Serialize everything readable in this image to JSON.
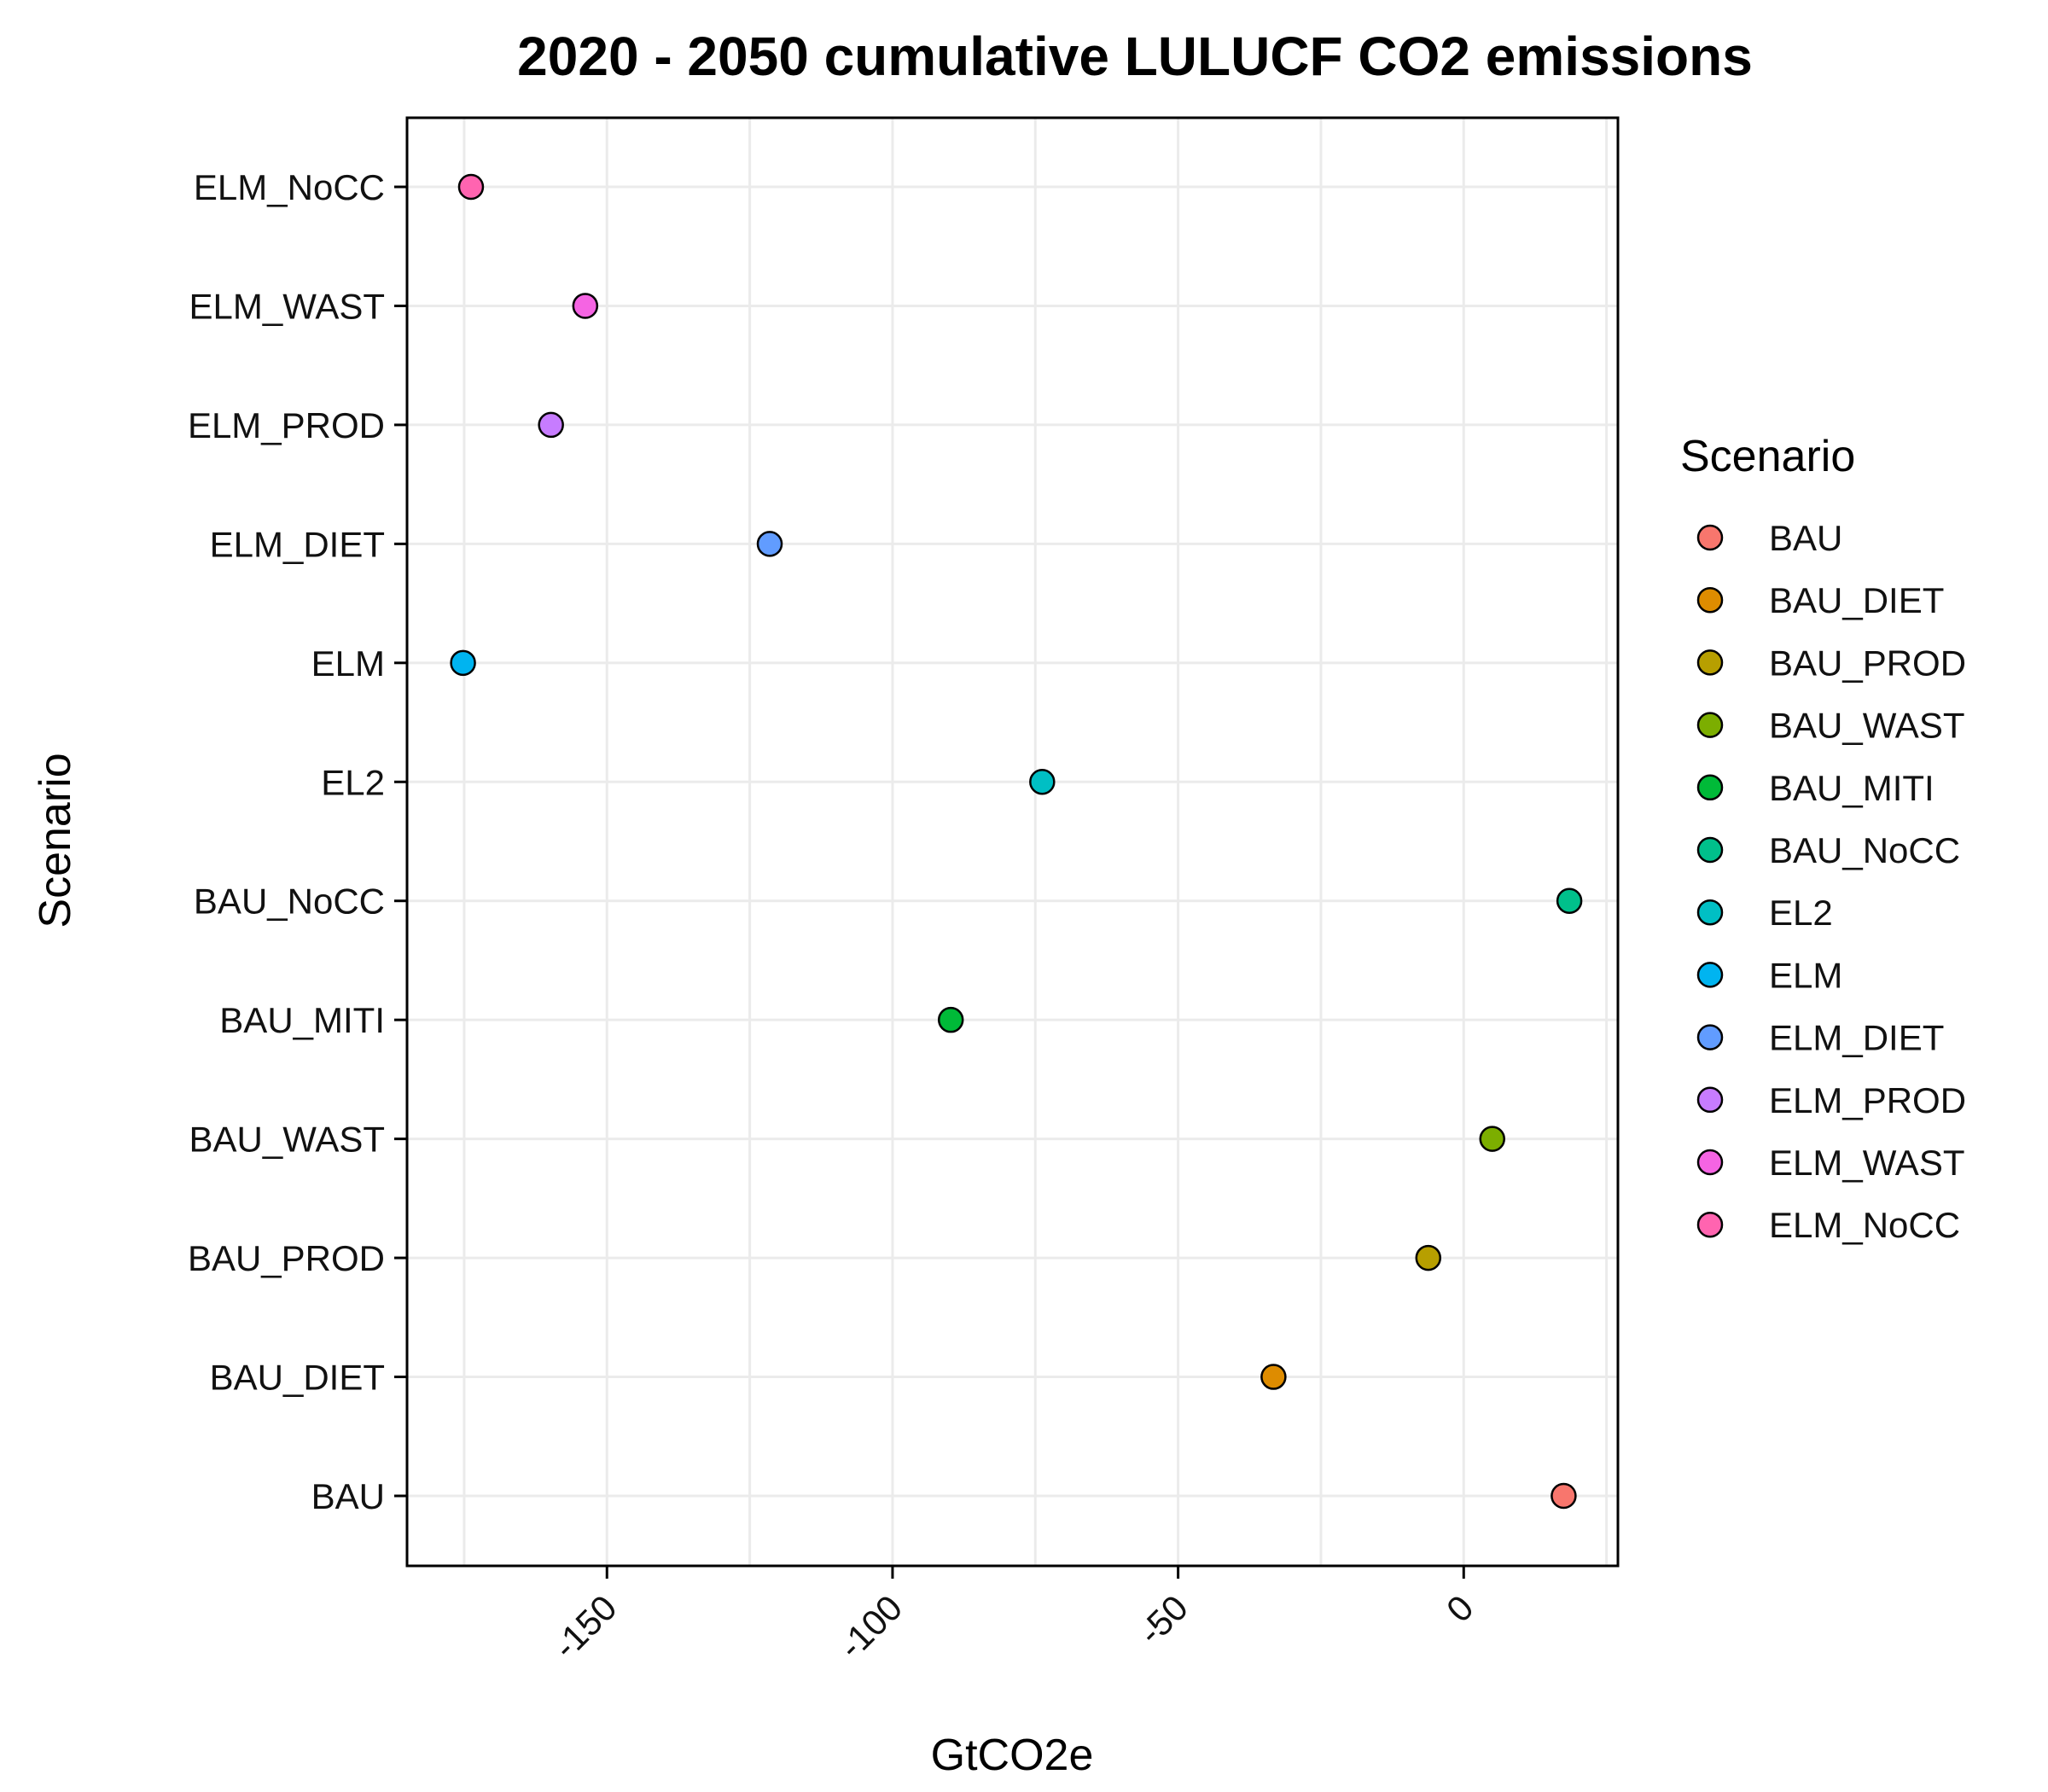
{
  "chart_data": {
    "type": "scatter",
    "title": "2020 - 2050 cumulative LULUCF CO2 emissions",
    "xlabel": "GtCO2e",
    "ylabel": "Scenario",
    "xlim": [
      -185,
      27
    ],
    "x_ticks": [
      -150,
      -100,
      -50,
      0
    ],
    "x_tick_labels": [
      "-150",
      "-100",
      "-50",
      "0"
    ],
    "grid": true,
    "legend": {
      "title": "Scenario",
      "position": "right"
    },
    "categories": [
      "BAU",
      "BAU_DIET",
      "BAU_PROD",
      "BAU_WAST",
      "BAU_MITI",
      "BAU_NoCC",
      "EL2",
      "ELM",
      "ELM_DIET",
      "ELM_PROD",
      "ELM_WAST",
      "ELM_NoCC"
    ],
    "points": [
      {
        "scenario": "BAU",
        "x": 17.5,
        "color": "#F8766D"
      },
      {
        "scenario": "BAU_DIET",
        "x": -33.3,
        "color": "#DE8C00"
      },
      {
        "scenario": "BAU_PROD",
        "x": -6.2,
        "color": "#B79F00"
      },
      {
        "scenario": "BAU_WAST",
        "x": 5,
        "color": "#7CAE00"
      },
      {
        "scenario": "BAU_MITI",
        "x": -89.8,
        "color": "#00BA38"
      },
      {
        "scenario": "BAU_NoCC",
        "x": 18.5,
        "color": "#00C08B"
      },
      {
        "scenario": "EL2",
        "x": -73.8,
        "color": "#00BFC4"
      },
      {
        "scenario": "ELM",
        "x": -175.2,
        "color": "#00B4F0"
      },
      {
        "scenario": "ELM_DIET",
        "x": -121.5,
        "color": "#619CFF"
      },
      {
        "scenario": "ELM_PROD",
        "x": -159.8,
        "color": "#C77CFF"
      },
      {
        "scenario": "ELM_WAST",
        "x": -153.8,
        "color": "#F564E3"
      },
      {
        "scenario": "ELM_NoCC",
        "x": -173.8,
        "color": "#FF64B0"
      }
    ]
  }
}
